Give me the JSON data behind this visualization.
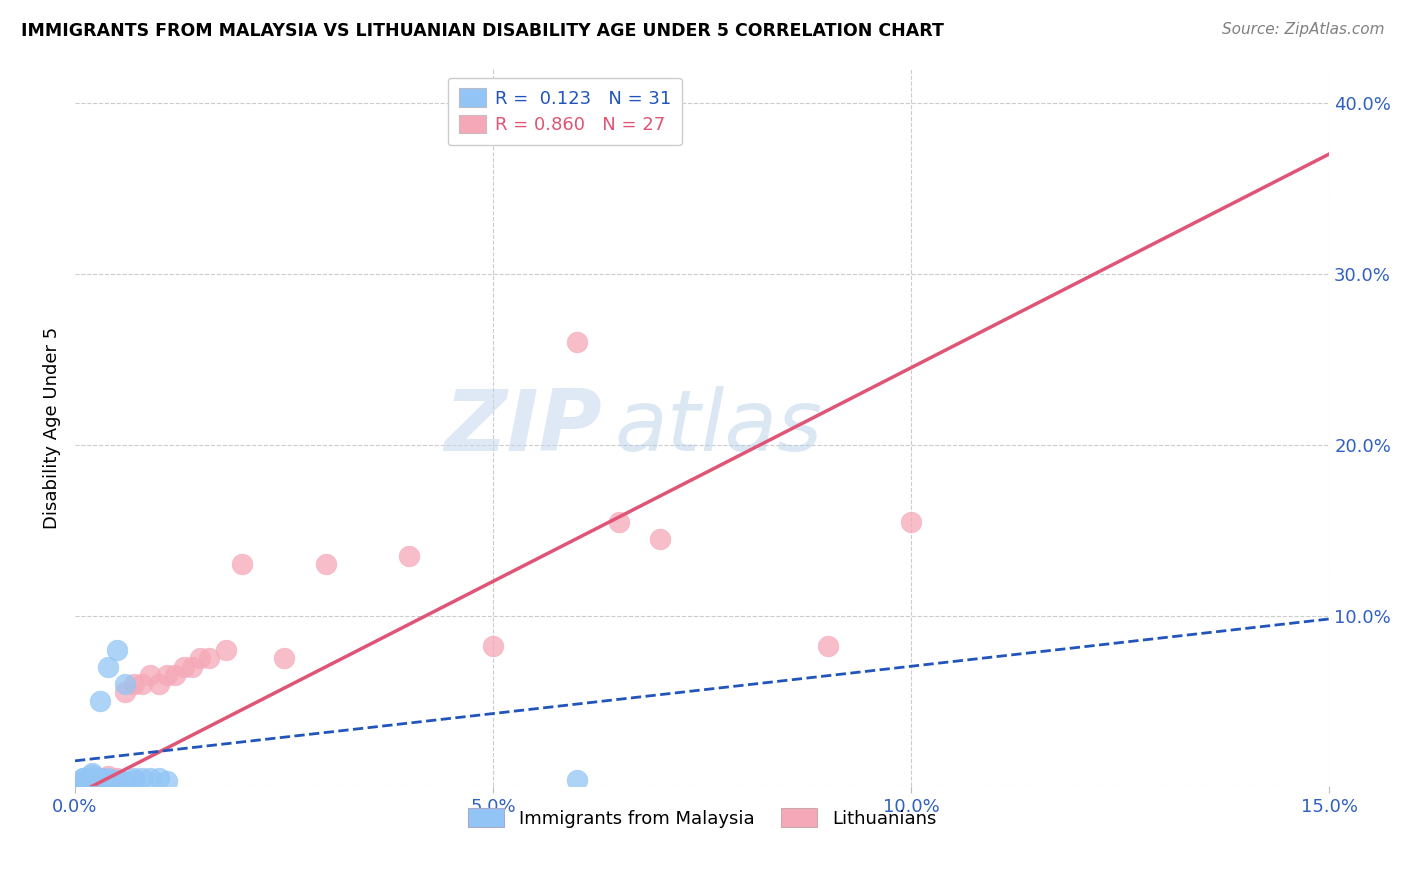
{
  "title": "IMMIGRANTS FROM MALAYSIA VS LITHUANIAN DISABILITY AGE UNDER 5 CORRELATION CHART",
  "source": "Source: ZipAtlas.com",
  "ylabel": "Disability Age Under 5",
  "xlabel_blue": "Immigrants from Malaysia",
  "xlabel_pink": "Lithuanians",
  "xlim": [
    0.0,
    0.15
  ],
  "ylim": [
    0.0,
    0.42
  ],
  "xticks": [
    0.0,
    0.05,
    0.1,
    0.15
  ],
  "yticks_right": [
    0.0,
    0.1,
    0.2,
    0.3,
    0.4
  ],
  "ytick_right_labels": [
    "",
    "10.0%",
    "20.0%",
    "30.0%",
    "40.0%"
  ],
  "xtick_labels": [
    "0.0%",
    "5.0%",
    "10.0%",
    "15.0%"
  ],
  "legend_R_blue": "0.123",
  "legend_N_blue": "31",
  "legend_R_pink": "0.860",
  "legend_N_pink": "27",
  "blue_color": "#92c5f5",
  "pink_color": "#f5a8b8",
  "blue_line_color": "#2255bb",
  "pink_line_color": "#e05575",
  "watermark_zip": "ZIP",
  "watermark_atlas": "atlas",
  "blue_scatter_x": [
    0.001,
    0.001,
    0.001,
    0.001,
    0.001,
    0.002,
    0.002,
    0.002,
    0.002,
    0.002,
    0.002,
    0.002,
    0.003,
    0.003,
    0.003,
    0.003,
    0.004,
    0.004,
    0.004,
    0.005,
    0.005,
    0.005,
    0.006,
    0.006,
    0.007,
    0.007,
    0.008,
    0.009,
    0.01,
    0.011,
    0.06
  ],
  "blue_scatter_y": [
    0.002,
    0.003,
    0.003,
    0.005,
    0.005,
    0.002,
    0.003,
    0.003,
    0.004,
    0.005,
    0.007,
    0.008,
    0.003,
    0.004,
    0.005,
    0.05,
    0.004,
    0.005,
    0.07,
    0.003,
    0.004,
    0.08,
    0.003,
    0.06,
    0.004,
    0.005,
    0.005,
    0.005,
    0.005,
    0.003,
    0.004
  ],
  "pink_scatter_x": [
    0.001,
    0.002,
    0.003,
    0.004,
    0.005,
    0.006,
    0.007,
    0.008,
    0.009,
    0.01,
    0.011,
    0.012,
    0.013,
    0.014,
    0.015,
    0.016,
    0.018,
    0.02,
    0.025,
    0.03,
    0.04,
    0.05,
    0.06,
    0.065,
    0.07,
    0.09,
    0.1
  ],
  "pink_scatter_y": [
    0.002,
    0.004,
    0.005,
    0.006,
    0.005,
    0.055,
    0.06,
    0.06,
    0.065,
    0.06,
    0.065,
    0.065,
    0.07,
    0.07,
    0.075,
    0.075,
    0.08,
    0.13,
    0.075,
    0.13,
    0.135,
    0.082,
    0.26,
    0.155,
    0.145,
    0.082,
    0.155
  ],
  "pink_line_x0": 0.0,
  "pink_line_y0": -0.005,
  "pink_line_x1": 0.15,
  "pink_line_y1": 0.37,
  "blue_line_x0": 0.0,
  "blue_line_y0": 0.015,
  "blue_line_x1": 0.15,
  "blue_line_y1": 0.098
}
